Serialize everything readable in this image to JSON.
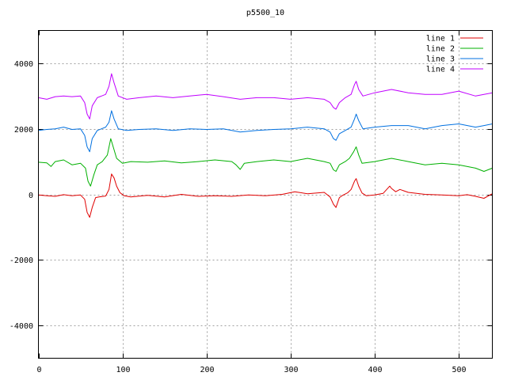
{
  "chart_data": {
    "type": "line",
    "title": "p5500_10",
    "xlabel": "",
    "ylabel": "",
    "xlim": [
      0,
      540
    ],
    "ylim": [
      -5000,
      5000
    ],
    "x_ticks": [
      0,
      100,
      200,
      300,
      400,
      500
    ],
    "y_ticks": [
      -4000,
      -2000,
      0,
      2000,
      4000
    ],
    "grid": true,
    "legend_position": "top-right",
    "series": [
      {
        "name": "line 1",
        "color": "#e00000",
        "points": [
          [
            0,
            -20
          ],
          [
            10,
            -40
          ],
          [
            20,
            -60
          ],
          [
            30,
            -10
          ],
          [
            40,
            -40
          ],
          [
            50,
            -20
          ],
          [
            55,
            -150
          ],
          [
            58,
            -550
          ],
          [
            61,
            -700
          ],
          [
            64,
            -400
          ],
          [
            68,
            -100
          ],
          [
            72,
            -80
          ],
          [
            80,
            -50
          ],
          [
            84,
            150
          ],
          [
            87,
            620
          ],
          [
            90,
            500
          ],
          [
            93,
            250
          ],
          [
            97,
            50
          ],
          [
            102,
            -40
          ],
          [
            110,
            -80
          ],
          [
            130,
            -30
          ],
          [
            150,
            -80
          ],
          [
            170,
            0
          ],
          [
            190,
            -60
          ],
          [
            210,
            -40
          ],
          [
            230,
            -60
          ],
          [
            250,
            -20
          ],
          [
            270,
            -40
          ],
          [
            290,
            0
          ],
          [
            305,
            80
          ],
          [
            320,
            20
          ],
          [
            340,
            60
          ],
          [
            347,
            -80
          ],
          [
            351,
            -300
          ],
          [
            354,
            -400
          ],
          [
            358,
            -100
          ],
          [
            362,
            -30
          ],
          [
            368,
            50
          ],
          [
            372,
            150
          ],
          [
            376,
            400
          ],
          [
            378,
            480
          ],
          [
            381,
            250
          ],
          [
            385,
            40
          ],
          [
            390,
            -40
          ],
          [
            400,
            -20
          ],
          [
            410,
            30
          ],
          [
            418,
            250
          ],
          [
            420,
            180
          ],
          [
            425,
            80
          ],
          [
            430,
            150
          ],
          [
            440,
            60
          ],
          [
            460,
            0
          ],
          [
            480,
            -20
          ],
          [
            500,
            -40
          ],
          [
            510,
            -10
          ],
          [
            520,
            -60
          ],
          [
            530,
            -120
          ],
          [
            540,
            20
          ]
        ]
      },
      {
        "name": "line 2",
        "color": "#00b000",
        "points": [
          [
            0,
            980
          ],
          [
            10,
            960
          ],
          [
            15,
            850
          ],
          [
            20,
            1000
          ],
          [
            30,
            1050
          ],
          [
            40,
            900
          ],
          [
            50,
            950
          ],
          [
            56,
            800
          ],
          [
            59,
            400
          ],
          [
            62,
            250
          ],
          [
            66,
            600
          ],
          [
            70,
            900
          ],
          [
            76,
            1000
          ],
          [
            82,
            1200
          ],
          [
            86,
            1700
          ],
          [
            89,
            1450
          ],
          [
            93,
            1100
          ],
          [
            100,
            950
          ],
          [
            110,
            1000
          ],
          [
            130,
            980
          ],
          [
            150,
            1020
          ],
          [
            170,
            960
          ],
          [
            190,
            1000
          ],
          [
            210,
            1050
          ],
          [
            230,
            1000
          ],
          [
            235,
            900
          ],
          [
            240,
            760
          ],
          [
            245,
            950
          ],
          [
            260,
            1000
          ],
          [
            280,
            1050
          ],
          [
            300,
            1000
          ],
          [
            320,
            1100
          ],
          [
            340,
            1000
          ],
          [
            347,
            950
          ],
          [
            351,
            750
          ],
          [
            354,
            700
          ],
          [
            358,
            900
          ],
          [
            365,
            1000
          ],
          [
            370,
            1100
          ],
          [
            375,
            1300
          ],
          [
            378,
            1450
          ],
          [
            381,
            1200
          ],
          [
            385,
            950
          ],
          [
            400,
            1000
          ],
          [
            420,
            1100
          ],
          [
            440,
            1000
          ],
          [
            460,
            900
          ],
          [
            480,
            950
          ],
          [
            500,
            900
          ],
          [
            520,
            800
          ],
          [
            530,
            700
          ],
          [
            540,
            800
          ]
        ]
      },
      {
        "name": "line 3",
        "color": "#0070e0",
        "points": [
          [
            0,
            1950
          ],
          [
            10,
            1980
          ],
          [
            20,
            2000
          ],
          [
            30,
            2050
          ],
          [
            40,
            1980
          ],
          [
            50,
            2000
          ],
          [
            55,
            1800
          ],
          [
            58,
            1450
          ],
          [
            61,
            1300
          ],
          [
            64,
            1700
          ],
          [
            70,
            1950
          ],
          [
            80,
            2050
          ],
          [
            84,
            2200
          ],
          [
            87,
            2550
          ],
          [
            90,
            2300
          ],
          [
            95,
            2000
          ],
          [
            105,
            1950
          ],
          [
            120,
            1980
          ],
          [
            140,
            2000
          ],
          [
            160,
            1950
          ],
          [
            180,
            2000
          ],
          [
            200,
            1980
          ],
          [
            220,
            2000
          ],
          [
            240,
            1900
          ],
          [
            260,
            1950
          ],
          [
            280,
            1980
          ],
          [
            300,
            2000
          ],
          [
            320,
            2050
          ],
          [
            340,
            2000
          ],
          [
            347,
            1900
          ],
          [
            351,
            1700
          ],
          [
            354,
            1650
          ],
          [
            358,
            1850
          ],
          [
            365,
            1950
          ],
          [
            372,
            2050
          ],
          [
            376,
            2300
          ],
          [
            378,
            2450
          ],
          [
            381,
            2250
          ],
          [
            386,
            2000
          ],
          [
            400,
            2050
          ],
          [
            420,
            2100
          ],
          [
            440,
            2100
          ],
          [
            460,
            2000
          ],
          [
            480,
            2100
          ],
          [
            500,
            2150
          ],
          [
            520,
            2050
          ],
          [
            530,
            2100
          ],
          [
            540,
            2150
          ]
        ]
      },
      {
        "name": "line 4",
        "color": "#c000ff",
        "points": [
          [
            0,
            2950
          ],
          [
            10,
            2900
          ],
          [
            20,
            2980
          ],
          [
            30,
            3000
          ],
          [
            40,
            2980
          ],
          [
            50,
            3000
          ],
          [
            55,
            2800
          ],
          [
            58,
            2450
          ],
          [
            61,
            2300
          ],
          [
            64,
            2700
          ],
          [
            70,
            2950
          ],
          [
            80,
            3050
          ],
          [
            84,
            3300
          ],
          [
            87,
            3680
          ],
          [
            90,
            3400
          ],
          [
            95,
            3000
          ],
          [
            105,
            2900
          ],
          [
            120,
            2950
          ],
          [
            140,
            3000
          ],
          [
            160,
            2950
          ],
          [
            180,
            3000
          ],
          [
            200,
            3050
          ],
          [
            220,
            2980
          ],
          [
            240,
            2900
          ],
          [
            260,
            2950
          ],
          [
            280,
            2950
          ],
          [
            300,
            2900
          ],
          [
            320,
            2950
          ],
          [
            340,
            2900
          ],
          [
            347,
            2800
          ],
          [
            351,
            2650
          ],
          [
            354,
            2600
          ],
          [
            358,
            2800
          ],
          [
            365,
            2950
          ],
          [
            372,
            3050
          ],
          [
            376,
            3350
          ],
          [
            378,
            3450
          ],
          [
            381,
            3200
          ],
          [
            386,
            3000
          ],
          [
            400,
            3100
          ],
          [
            420,
            3200
          ],
          [
            440,
            3100
          ],
          [
            460,
            3050
          ],
          [
            480,
            3050
          ],
          [
            500,
            3150
          ],
          [
            520,
            3000
          ],
          [
            530,
            3050
          ],
          [
            540,
            3100
          ]
        ]
      }
    ]
  }
}
